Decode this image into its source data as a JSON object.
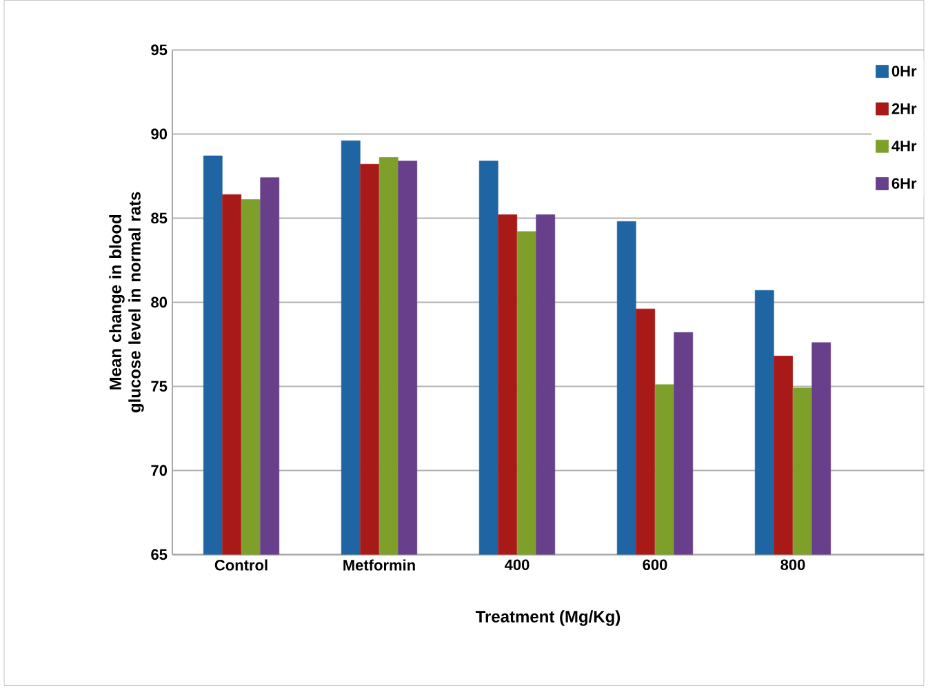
{
  "chart_data": {
    "type": "bar",
    "xlabel": "Treatment (Mg/Kg)",
    "ylabel": "Mean change in blood glucose level in normal rats",
    "categories": [
      "Control",
      "Metformin",
      "400",
      "600",
      "800"
    ],
    "series": [
      {
        "name": "0Hr",
        "color": "#1f65a3",
        "values": [
          88.7,
          89.6,
          88.4,
          84.8,
          80.7
        ]
      },
      {
        "name": "2Hr",
        "color": "#a81a17",
        "values": [
          86.4,
          88.2,
          85.2,
          79.6,
          76.8
        ]
      },
      {
        "name": "4Hr",
        "color": "#7ea02b",
        "values": [
          86.1,
          88.6,
          84.2,
          75.1,
          74.9
        ]
      },
      {
        "name": "6Hr",
        "color": "#673f8a",
        "values": [
          87.4,
          88.4,
          85.2,
          78.2,
          77.6
        ]
      }
    ],
    "ylim": [
      65,
      95
    ],
    "yticks": [
      65,
      70,
      75,
      80,
      85,
      90,
      95
    ],
    "grid": "y",
    "legend": "top right"
  }
}
